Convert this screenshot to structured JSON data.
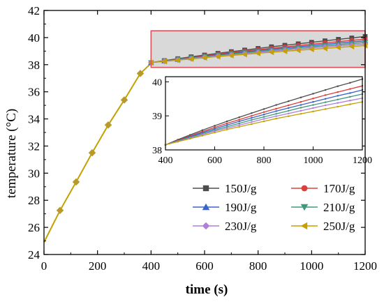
{
  "chart_data": {
    "type": "line",
    "xlabel": "time (s)",
    "ylabel": "temperature (°C)",
    "xlim": [
      0,
      1200
    ],
    "ylim": [
      24,
      42
    ],
    "xticks": [
      0,
      200,
      400,
      600,
      800,
      1000,
      1200
    ],
    "yticks": [
      24,
      26,
      28,
      30,
      32,
      34,
      36,
      38,
      40,
      42
    ],
    "grid": false,
    "legend_position": "bottom-right",
    "highlight_box": {
      "x": [
        400,
        1200
      ],
      "y": [
        37.8,
        40.5
      ],
      "color": "#e0505a"
    },
    "heating_phase": {
      "x": [
        0,
        60,
        120,
        180,
        240,
        300,
        360,
        400
      ],
      "y": [
        24.9,
        27.25,
        29.35,
        31.5,
        33.55,
        35.4,
        37.35,
        38.1
      ]
    },
    "x": [
      400,
      450,
      500,
      550,
      600,
      650,
      700,
      750,
      800,
      850,
      900,
      950,
      1000,
      1050,
      1100,
      1150,
      1200
    ],
    "series": [
      {
        "name": "150J/g",
        "color": "#4d4d4d",
        "marker": "square",
        "values": [
          38.15,
          38.3,
          38.44,
          38.58,
          38.71,
          38.84,
          38.96,
          39.08,
          39.2,
          39.32,
          39.43,
          39.54,
          39.65,
          39.76,
          39.87,
          39.97,
          40.08
        ]
      },
      {
        "name": "170J/g",
        "color": "#d9403a",
        "marker": "circle",
        "values": [
          38.15,
          38.28,
          38.41,
          38.54,
          38.66,
          38.78,
          38.89,
          39.0,
          39.11,
          39.21,
          39.31,
          39.41,
          39.51,
          39.61,
          39.7,
          39.79,
          39.88
        ]
      },
      {
        "name": "190J/g",
        "color": "#3a62c8",
        "marker": "triangle-up",
        "values": [
          38.15,
          38.27,
          38.39,
          38.51,
          38.62,
          38.73,
          38.84,
          38.94,
          39.04,
          39.14,
          39.23,
          39.32,
          39.41,
          39.5,
          39.59,
          39.67,
          39.76
        ]
      },
      {
        "name": "210J/g",
        "color": "#3e9a7a",
        "marker": "triangle-down",
        "values": [
          38.15,
          38.26,
          38.37,
          38.48,
          38.58,
          38.68,
          38.78,
          38.88,
          38.97,
          39.06,
          39.15,
          39.24,
          39.32,
          39.4,
          39.48,
          39.56,
          39.64
        ]
      },
      {
        "name": "230J/g",
        "color": "#b07fd8",
        "marker": "diamond",
        "values": [
          38.15,
          38.25,
          38.35,
          38.45,
          38.55,
          38.64,
          38.73,
          38.82,
          38.91,
          38.99,
          39.07,
          39.15,
          39.23,
          39.31,
          39.38,
          39.45,
          39.52
        ]
      },
      {
        "name": "250J/g",
        "color": "#c4a000",
        "marker": "triangle-left",
        "values": [
          38.15,
          38.24,
          38.33,
          38.42,
          38.51,
          38.6,
          38.68,
          38.76,
          38.84,
          38.92,
          38.99,
          39.06,
          39.13,
          39.2,
          39.27,
          39.34,
          39.41
        ]
      }
    ],
    "inset": {
      "xlim": [
        400,
        1200
      ],
      "ylim": [
        38,
        40.15
      ],
      "xticks": [
        400,
        600,
        800,
        1000,
        1200
      ],
      "yticks": [
        38,
        39,
        40
      ]
    }
  }
}
